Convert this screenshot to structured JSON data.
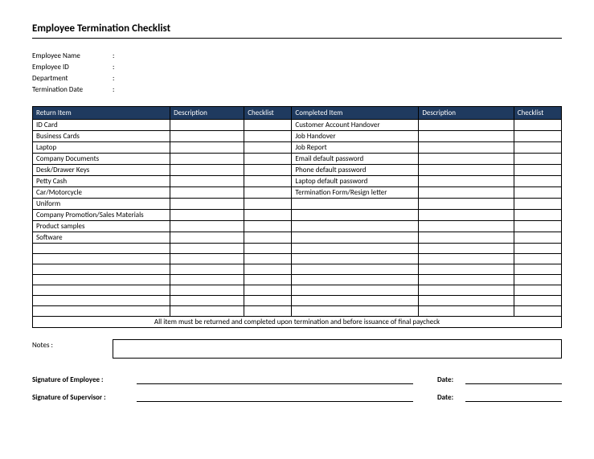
{
  "title": "Employee Termination Checklist",
  "info": {
    "name_label": "Employee Name",
    "id_label": "Employee ID",
    "dept_label": "Department",
    "termdate_label": "Termination Date",
    "colon": ":"
  },
  "headers": {
    "return_item": "Return Item",
    "description1": "Description",
    "checklist1": "Checklist",
    "completed_item": "Completed Item",
    "description2": "Description",
    "checklist2": "Checklist"
  },
  "col_widths": {
    "return_item": "26%",
    "description1": "14%",
    "checklist1": "9%",
    "completed_item": "24%",
    "description2": "18%",
    "checklist2": "9%"
  },
  "return_items": [
    "ID Card",
    "Business Cards",
    "Laptop",
    "Company Documents",
    "Desk/Drawer Keys",
    "Petty Cash",
    "Car/Motorcycle",
    "Uniform",
    "Company Promotion/Sales Materials",
    "Product samples",
    "Software"
  ],
  "completed_items": [
    "Customer Account Handover",
    "Job Handover",
    "Job Report",
    "Email default password",
    "Phone default password",
    "Laptop default password",
    "Termination Form/Resign letter"
  ],
  "blank_rows": 7,
  "footer_text": "All item must be returned and completed upon termination and before issuance of final paycheck",
  "notes_label": "Notes :",
  "sig_employee": "Signature of Employee :",
  "sig_supervisor": "Signature of Supervisor :",
  "date_label": "Date:",
  "colors": {
    "header_bg": "#1f3a5f",
    "header_fg": "#ffffff",
    "border": "#000000"
  }
}
